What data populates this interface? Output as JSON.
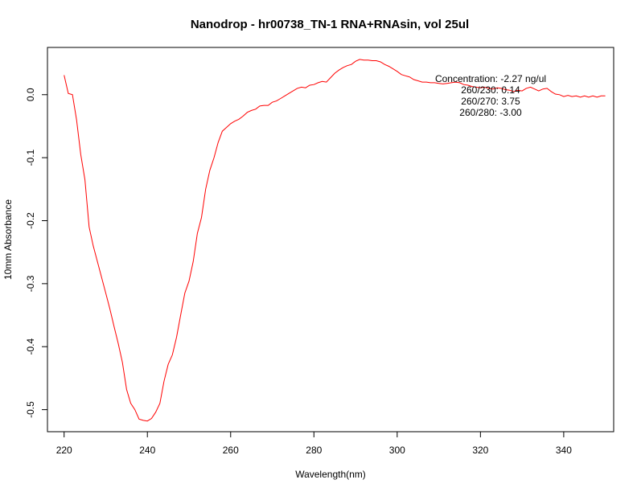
{
  "chart_data": {
    "type": "line",
    "title": "Nanodrop - hr00738_TN-1 RNA+RNAsin, vol 25ul",
    "xlabel": "Wavelength(nm)",
    "ylabel": "10mm Absorbance",
    "xlim": [
      216,
      352
    ],
    "ylim": [
      -0.535,
      0.075
    ],
    "grid": false,
    "legend": "none",
    "x_ticks": [
      220,
      240,
      260,
      280,
      300,
      320,
      340
    ],
    "y_ticks": [
      -0.5,
      -0.4,
      -0.3,
      -0.2,
      -0.1,
      0.0
    ],
    "x_tick_labels": [
      "220",
      "240",
      "260",
      "280",
      "300",
      "320",
      "340"
    ],
    "y_tick_labels": [
      "-0.5",
      "-0.4",
      "-0.3",
      "-0.2",
      "-0.1",
      "0.0"
    ],
    "line_color": "#ff0000",
    "annotations": [
      "Concentration: -2.27 ng/ul",
      "260/230: 0.14",
      "260/270: 3.75",
      "260/280: -3.00"
    ],
    "series": [
      {
        "x": [
          220,
          221,
          222,
          223,
          224,
          225,
          226,
          227,
          228,
          229,
          230,
          231,
          232,
          233,
          234,
          235,
          236,
          237,
          238,
          239,
          240,
          241,
          242,
          243,
          244,
          245,
          246,
          247,
          248,
          249,
          250,
          251,
          252,
          253,
          254,
          255,
          256,
          257,
          258,
          259,
          260,
          261,
          262,
          263,
          264,
          265,
          266,
          267,
          268,
          269,
          270,
          271,
          272,
          273,
          274,
          275,
          276,
          277,
          278,
          279,
          280,
          281,
          282,
          283,
          284,
          285,
          286,
          287,
          288,
          289,
          290,
          291,
          292,
          293,
          294,
          295,
          296,
          297,
          298,
          299,
          300,
          301,
          302,
          303,
          304,
          305,
          306,
          307,
          308,
          309,
          310,
          311,
          312,
          313,
          314,
          315,
          316,
          317,
          318,
          319,
          320,
          321,
          322,
          323,
          324,
          325,
          326,
          327,
          328,
          329,
          330,
          331,
          332,
          333,
          334,
          335,
          336,
          337,
          338,
          339,
          340,
          341,
          342,
          343,
          344,
          345,
          346,
          347,
          348,
          349,
          350
        ],
        "y": [
          0.031,
          0.002,
          0.0,
          -0.04,
          -0.095,
          -0.135,
          -0.21,
          -0.24,
          -0.265,
          -0.29,
          -0.315,
          -0.34,
          -0.368,
          -0.395,
          -0.425,
          -0.468,
          -0.49,
          -0.5,
          -0.515,
          -0.517,
          -0.518,
          -0.514,
          -0.504,
          -0.49,
          -0.455,
          -0.428,
          -0.413,
          -0.385,
          -0.35,
          -0.315,
          -0.296,
          -0.265,
          -0.22,
          -0.195,
          -0.15,
          -0.12,
          -0.1,
          -0.076,
          -0.058,
          -0.052,
          -0.046,
          -0.042,
          -0.039,
          -0.034,
          -0.028,
          -0.025,
          -0.023,
          -0.018,
          -0.017,
          -0.017,
          -0.012,
          -0.01,
          -0.006,
          -0.002,
          0.002,
          0.006,
          0.01,
          0.012,
          0.011,
          0.015,
          0.016,
          0.019,
          0.021,
          0.02,
          0.027,
          0.034,
          0.039,
          0.043,
          0.046,
          0.048,
          0.053,
          0.056,
          0.055,
          0.055,
          0.054,
          0.054,
          0.052,
          0.048,
          0.045,
          0.041,
          0.037,
          0.032,
          0.03,
          0.028,
          0.024,
          0.022,
          0.02,
          0.02,
          0.019,
          0.019,
          0.018,
          0.017,
          0.018,
          0.019,
          0.02,
          0.019,
          0.016,
          0.015,
          0.013,
          0.012,
          0.011,
          0.012,
          0.01,
          0.009,
          0.011,
          0.01,
          0.008,
          0.007,
          0.005,
          0.007,
          0.006,
          0.01,
          0.012,
          0.009,
          0.006,
          0.009,
          0.01,
          0.005,
          0.001,
          0.0,
          -0.003,
          -0.001,
          -0.003,
          -0.002,
          -0.004,
          -0.002,
          -0.004,
          -0.002,
          -0.004,
          -0.002,
          -0.002
        ]
      }
    ]
  }
}
